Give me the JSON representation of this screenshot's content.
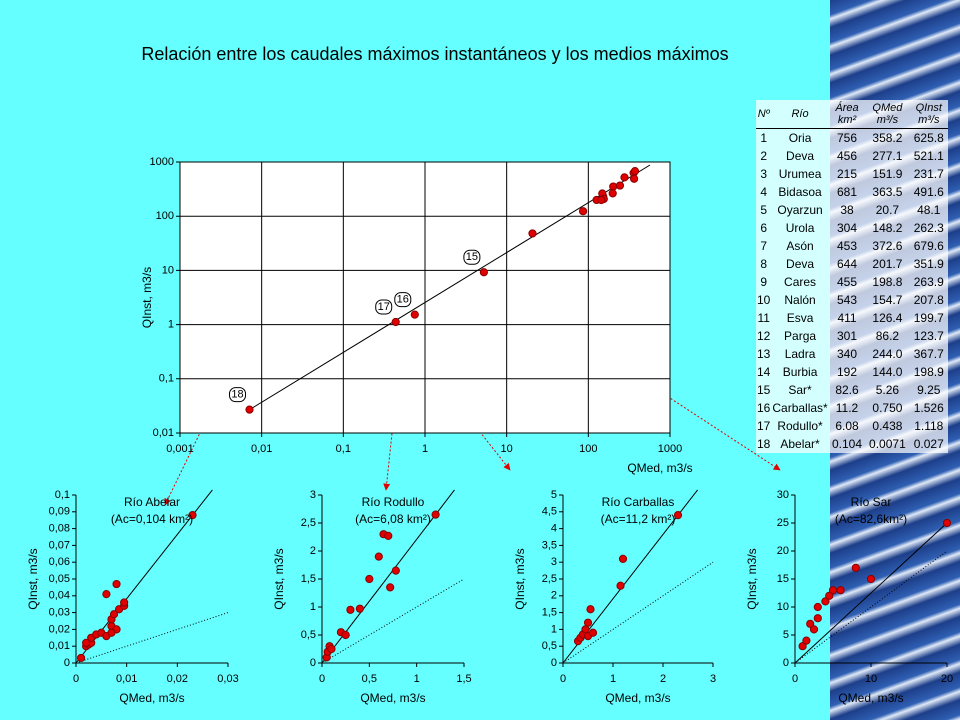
{
  "title": "Relación entre los caudales máximos instantáneos y los medios máximos",
  "table": {
    "header": [
      "Nº",
      "Río",
      "Área km²",
      "QMed m³/s",
      "QInst m³/s"
    ],
    "rows": [
      [
        "1",
        "Oria",
        "756",
        "358.2",
        "625.8"
      ],
      [
        "2",
        "Deva",
        "456",
        "277.1",
        "521.1"
      ],
      [
        "3",
        "Urumea",
        "215",
        "151.9",
        "231.7"
      ],
      [
        "4",
        "Bidasoa",
        "681",
        "363.5",
        "491.6"
      ],
      [
        "5",
        "Oyarzun",
        "38",
        "20.7",
        "48.1"
      ],
      [
        "6",
        "Urola",
        "304",
        "148.2",
        "262.3"
      ],
      [
        "7",
        "Asón",
        "453",
        "372.6",
        "679.6"
      ],
      [
        "8",
        "Deva",
        "644",
        "201.7",
        "351.9"
      ],
      [
        "9",
        "Cares",
        "455",
        "198.8",
        "263.9"
      ],
      [
        "10",
        "Nalón",
        "543",
        "154.7",
        "207.8"
      ],
      [
        "11",
        "Esva",
        "411",
        "126.4",
        "199.7"
      ],
      [
        "12",
        "Parga",
        "301",
        "86.2",
        "123.7"
      ],
      [
        "13",
        "Ladra",
        "340",
        "244.0",
        "367.7"
      ],
      [
        "14",
        "Burbia",
        "192",
        "144.0",
        "198.9"
      ],
      [
        "15",
        "Sar*",
        "82.6",
        "5.26",
        "9.25"
      ],
      [
        "16",
        "Carballas*",
        "11.2",
        "0.750",
        "1.526"
      ],
      [
        "17",
        "Rodullo*",
        "6.08",
        "0.438",
        "1.118"
      ],
      [
        "18",
        "Abelar*",
        "0.104",
        "0.0071",
        "0.027"
      ]
    ]
  },
  "chart_data": [
    {
      "type": "scatter",
      "log": true,
      "grid": true,
      "color": "#e00000",
      "x_label": "QMed, m3/s",
      "y_label": "QInst, m3/s",
      "x": [
        358.2,
        277.1,
        151.9,
        363.5,
        20.7,
        148.2,
        372.6,
        201.7,
        198.8,
        154.7,
        126.4,
        86.2,
        244.0,
        144.0,
        5.26,
        0.75,
        0.438,
        0.0071
      ],
      "values": [
        625.8,
        521.1,
        231.7,
        491.6,
        48.1,
        262.3,
        679.6,
        351.9,
        263.9,
        207.8,
        199.7,
        123.7,
        367.7,
        198.9,
        9.25,
        1.526,
        1.118,
        0.027
      ],
      "point_labels": [
        null,
        null,
        null,
        null,
        null,
        null,
        null,
        null,
        null,
        null,
        null,
        null,
        null,
        null,
        "15",
        "16",
        "17",
        "18"
      ],
      "xlim": [
        0.001,
        1000
      ],
      "ylim": [
        0.01,
        1000
      ],
      "xticks": [
        {
          "value": 0.001,
          "label": "0,001"
        },
        {
          "value": 0.01,
          "label": "0,01"
        },
        {
          "value": 0.1,
          "label": "0,1"
        },
        1,
        10,
        100,
        1000
      ],
      "yticks": [
        {
          "value": 0.01,
          "label": "0,01"
        },
        {
          "value": 0.1,
          "label": "0,1"
        },
        1,
        10,
        100,
        1000
      ]
    },
    {
      "type": "scatter",
      "color": "#e00000",
      "title": "Río Abelar",
      "subtitle": "(Ac=0,104 km²)",
      "x_label": "QMed, m3/s",
      "y_label": "QInst, m3/s",
      "x": [
        0.001,
        0.002,
        0.0025,
        0.003,
        0.002,
        0.003,
        0.004,
        0.005,
        0.006,
        0.006,
        0.007,
        0.007,
        0.0075,
        0.008,
        0.008,
        0.0085,
        0.0095,
        0.0095,
        0.007,
        0.023
      ],
      "values": [
        0.003,
        0.01,
        0.011,
        0.012,
        0.012,
        0.015,
        0.017,
        0.018,
        0.016,
        0.041,
        0.022,
        0.026,
        0.029,
        0.047,
        0.02,
        0.032,
        0.034,
        0.036,
        0.018,
        0.088
      ],
      "xlim": [
        0,
        0.03
      ],
      "ylim": [
        0,
        0.1
      ],
      "xticks": [
        0,
        {
          "value": 0.01,
          "label": "0,01"
        },
        {
          "value": 0.02,
          "label": "0,02"
        },
        {
          "value": 0.03,
          "label": "0,03"
        }
      ],
      "yticks": [
        0,
        {
          "value": 0.01,
          "label": "0,01"
        },
        {
          "value": 0.02,
          "label": "0,02"
        },
        {
          "value": 0.03,
          "label": "0,03"
        },
        {
          "value": 0.04,
          "label": "0,04"
        },
        {
          "value": 0.05,
          "label": "0,05"
        },
        {
          "value": 0.06,
          "label": "0,06"
        },
        {
          "value": 0.07,
          "label": "0,07"
        },
        {
          "value": 0.08,
          "label": "0,08"
        },
        {
          "value": 0.09,
          "label": "0,09"
        },
        {
          "value": 0.1,
          "label": "0,1"
        }
      ]
    },
    {
      "type": "scatter",
      "color": "#e00000",
      "title": "Río Rodullo",
      "subtitle": "(Ac=6,08 km²)",
      "x_label": "QMed, m3/s",
      "y_label": "QInst, m3/s",
      "x": [
        0.05,
        0.06,
        0.08,
        0.1,
        0.2,
        0.25,
        0.3,
        0.4,
        0.5,
        0.6,
        0.65,
        0.7,
        0.72,
        0.78,
        1.2
      ],
      "values": [
        0.1,
        0.2,
        0.3,
        0.25,
        0.55,
        0.5,
        0.95,
        0.97,
        1.5,
        1.9,
        2.3,
        2.27,
        1.35,
        1.65,
        2.65
      ],
      "xlim": [
        0,
        1.5
      ],
      "ylim": [
        0,
        3
      ],
      "xticks": [
        0,
        {
          "value": 0.5,
          "label": "0,5"
        },
        1,
        {
          "value": 1.5,
          "label": "1,5"
        }
      ],
      "yticks": [
        0,
        {
          "value": 0.5,
          "label": "0,5"
        },
        1,
        {
          "value": 1.5,
          "label": "1,5"
        },
        2,
        {
          "value": 2.5,
          "label": "2,5"
        },
        3
      ]
    },
    {
      "type": "scatter",
      "color": "#e00000",
      "title": "Río Carballas",
      "subtitle": "(Ac=11,2 km²)",
      "x_label": "QMed, m3/s",
      "y_label": "QInst, m3/s",
      "x": [
        0.3,
        0.35,
        0.4,
        0.45,
        0.5,
        0.5,
        0.55,
        0.6,
        1.15,
        1.2,
        2.3
      ],
      "values": [
        0.65,
        0.75,
        0.85,
        1.0,
        0.8,
        1.2,
        1.6,
        0.9,
        2.3,
        3.1,
        4.4
      ],
      "xlim": [
        0,
        3
      ],
      "ylim": [
        0,
        5
      ],
      "xticks": [
        0,
        1,
        2,
        3
      ],
      "yticks": [
        0,
        {
          "value": 0.5,
          "label": "0,5"
        },
        1,
        {
          "value": 1.5,
          "label": "1,5"
        },
        2,
        {
          "value": 2.5,
          "label": "2,5"
        },
        3,
        {
          "value": 3.5,
          "label": "3,5"
        },
        4,
        {
          "value": 4.5,
          "label": "4,5"
        },
        5
      ]
    },
    {
      "type": "scatter",
      "color": "#e00000",
      "title": "Río Sar",
      "subtitle": "(Ac=82,6km²)",
      "x_label": "QMed, m3/s",
      "y_label": "QInst, m3/s",
      "x": [
        1,
        1.5,
        2,
        2.5,
        3,
        3,
        4,
        4.5,
        5,
        6,
        8,
        10,
        20
      ],
      "values": [
        3,
        4,
        7,
        6,
        10,
        8,
        11,
        12,
        13,
        13,
        17,
        15,
        25
      ],
      "xlim": [
        0,
        20
      ],
      "ylim": [
        0,
        30
      ],
      "xticks": [
        0,
        10,
        20
      ],
      "yticks": [
        0,
        5,
        10,
        15,
        20,
        25,
        30
      ]
    }
  ]
}
